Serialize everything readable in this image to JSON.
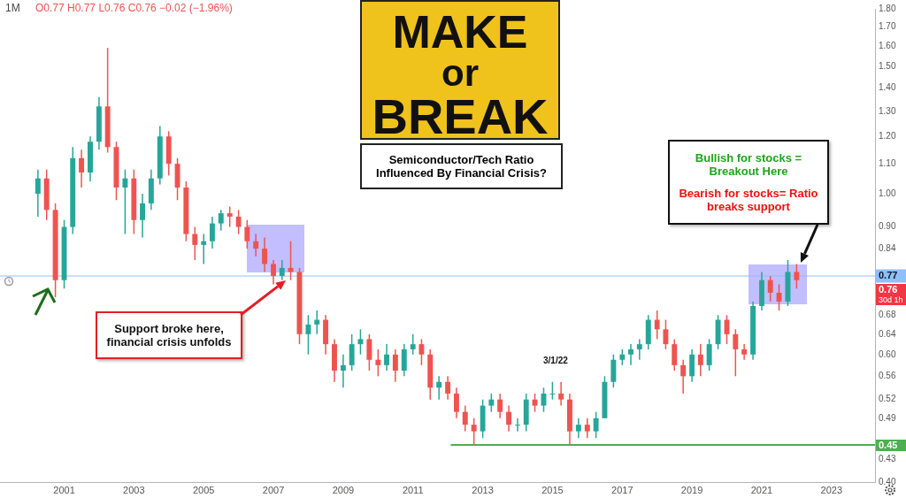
{
  "chart_data": {
    "type": "candlestick",
    "title": "MAKE or BREAK",
    "subtitle": "Semiconductor/Tech Ratio Influenced By Financial Crisis?",
    "x": [
      "2000-04",
      "2000-07",
      "2000-10",
      "2001-01",
      "2001-04",
      "2001-07",
      "2001-10",
      "2002-01",
      "2002-04",
      "2002-07",
      "2002-10",
      "2003-01",
      "2003-04",
      "2003-07",
      "2003-10",
      "2004-01",
      "2004-04",
      "2004-07",
      "2004-10",
      "2005-01",
      "2005-04",
      "2005-07",
      "2005-10",
      "2006-01",
      "2006-04",
      "2006-07",
      "2006-10",
      "2007-01",
      "2007-04",
      "2007-07",
      "2007-10",
      "2008-01",
      "2008-04",
      "2008-07",
      "2008-10",
      "2009-01",
      "2009-04",
      "2009-07",
      "2009-10",
      "2010-01",
      "2010-04",
      "2010-07",
      "2010-10",
      "2011-01",
      "2011-04",
      "2011-07",
      "2011-10",
      "2012-01",
      "2012-04",
      "2012-07",
      "2012-10",
      "2013-01",
      "2013-04",
      "2013-07",
      "2013-10",
      "2014-01",
      "2014-04",
      "2014-07",
      "2014-10",
      "2015-01",
      "2015-04",
      "2015-07",
      "2015-10",
      "2016-01",
      "2016-04",
      "2016-07",
      "2016-10",
      "2017-01",
      "2017-04",
      "2017-07",
      "2017-10",
      "2018-01",
      "2018-04",
      "2018-07",
      "2018-10",
      "2019-01",
      "2019-04",
      "2019-07",
      "2019-10",
      "2020-01",
      "2020-04",
      "2020-07",
      "2020-10",
      "2021-01",
      "2021-04",
      "2021-07",
      "2021-10",
      "2022-01"
    ],
    "ohlc": [
      [
        1.0,
        1.08,
        0.93,
        1.05
      ],
      [
        1.05,
        1.08,
        0.92,
        0.95
      ],
      [
        0.95,
        0.97,
        0.72,
        0.76
      ],
      [
        0.76,
        0.92,
        0.74,
        0.9
      ],
      [
        0.9,
        1.16,
        0.88,
        1.12
      ],
      [
        1.12,
        1.15,
        1.02,
        1.07
      ],
      [
        1.07,
        1.2,
        1.04,
        1.18
      ],
      [
        1.18,
        1.36,
        1.15,
        1.32
      ],
      [
        1.32,
        1.59,
        1.14,
        1.16
      ],
      [
        1.16,
        1.18,
        0.98,
        1.02
      ],
      [
        1.02,
        1.08,
        0.88,
        1.05
      ],
      [
        1.05,
        1.08,
        0.88,
        0.92
      ],
      [
        0.92,
        1.0,
        0.87,
        0.97
      ],
      [
        0.97,
        1.08,
        0.95,
        1.05
      ],
      [
        1.05,
        1.24,
        1.03,
        1.2
      ],
      [
        1.2,
        1.22,
        1.06,
        1.1
      ],
      [
        1.1,
        1.12,
        0.98,
        1.02
      ],
      [
        1.02,
        1.04,
        0.86,
        0.88
      ],
      [
        0.88,
        0.9,
        0.81,
        0.85
      ],
      [
        0.85,
        0.88,
        0.8,
        0.86
      ],
      [
        0.86,
        0.93,
        0.84,
        0.91
      ],
      [
        0.91,
        0.95,
        0.89,
        0.94
      ],
      [
        0.94,
        0.96,
        0.9,
        0.93
      ],
      [
        0.93,
        0.95,
        0.88,
        0.9
      ],
      [
        0.9,
        0.92,
        0.84,
        0.86
      ],
      [
        0.86,
        0.88,
        0.82,
        0.84
      ],
      [
        0.84,
        0.87,
        0.78,
        0.8
      ],
      [
        0.8,
        0.81,
        0.75,
        0.77
      ],
      [
        0.77,
        0.81,
        0.76,
        0.79
      ],
      [
        0.79,
        0.86,
        0.76,
        0.78
      ],
      [
        0.78,
        0.79,
        0.62,
        0.64
      ],
      [
        0.64,
        0.68,
        0.6,
        0.66
      ],
      [
        0.66,
        0.69,
        0.64,
        0.67
      ],
      [
        0.67,
        0.68,
        0.6,
        0.62
      ],
      [
        0.62,
        0.63,
        0.55,
        0.57
      ],
      [
        0.57,
        0.6,
        0.54,
        0.58
      ],
      [
        0.58,
        0.64,
        0.57,
        0.62
      ],
      [
        0.62,
        0.65,
        0.6,
        0.63
      ],
      [
        0.63,
        0.64,
        0.57,
        0.59
      ],
      [
        0.59,
        0.61,
        0.56,
        0.58
      ],
      [
        0.58,
        0.62,
        0.57,
        0.6
      ],
      [
        0.6,
        0.61,
        0.55,
        0.57
      ],
      [
        0.57,
        0.62,
        0.56,
        0.61
      ],
      [
        0.61,
        0.64,
        0.6,
        0.62
      ],
      [
        0.62,
        0.63,
        0.58,
        0.6
      ],
      [
        0.6,
        0.61,
        0.52,
        0.54
      ],
      [
        0.54,
        0.56,
        0.52,
        0.55
      ],
      [
        0.55,
        0.56,
        0.52,
        0.53
      ],
      [
        0.53,
        0.54,
        0.49,
        0.5
      ],
      [
        0.5,
        0.51,
        0.47,
        0.48
      ],
      [
        0.48,
        0.49,
        0.45,
        0.47
      ],
      [
        0.47,
        0.52,
        0.46,
        0.51
      ],
      [
        0.51,
        0.53,
        0.5,
        0.52
      ],
      [
        0.52,
        0.53,
        0.49,
        0.5
      ],
      [
        0.5,
        0.51,
        0.47,
        0.48
      ],
      [
        0.48,
        0.49,
        0.47,
        0.48
      ],
      [
        0.48,
        0.53,
        0.47,
        0.52
      ],
      [
        0.52,
        0.53,
        0.5,
        0.51
      ],
      [
        0.51,
        0.54,
        0.5,
        0.53
      ],
      [
        0.53,
        0.55,
        0.52,
        0.53
      ],
      [
        0.53,
        0.55,
        0.51,
        0.52
      ],
      [
        0.52,
        0.53,
        0.45,
        0.47
      ],
      [
        0.47,
        0.49,
        0.46,
        0.48
      ],
      [
        0.48,
        0.49,
        0.46,
        0.47
      ],
      [
        0.47,
        0.5,
        0.46,
        0.49
      ],
      [
        0.49,
        0.56,
        0.49,
        0.55
      ],
      [
        0.55,
        0.6,
        0.54,
        0.59
      ],
      [
        0.59,
        0.61,
        0.58,
        0.6
      ],
      [
        0.6,
        0.62,
        0.58,
        0.61
      ],
      [
        0.61,
        0.63,
        0.59,
        0.62
      ],
      [
        0.62,
        0.68,
        0.61,
        0.67
      ],
      [
        0.67,
        0.69,
        0.63,
        0.65
      ],
      [
        0.65,
        0.67,
        0.61,
        0.62
      ],
      [
        0.62,
        0.63,
        0.57,
        0.58
      ],
      [
        0.58,
        0.59,
        0.53,
        0.56
      ],
      [
        0.56,
        0.61,
        0.55,
        0.6
      ],
      [
        0.6,
        0.62,
        0.56,
        0.58
      ],
      [
        0.58,
        0.63,
        0.57,
        0.62
      ],
      [
        0.62,
        0.68,
        0.61,
        0.67
      ],
      [
        0.67,
        0.68,
        0.62,
        0.64
      ],
      [
        0.64,
        0.65,
        0.56,
        0.61
      ],
      [
        0.61,
        0.62,
        0.59,
        0.6
      ],
      [
        0.6,
        0.71,
        0.59,
        0.7
      ],
      [
        0.7,
        0.78,
        0.69,
        0.76
      ],
      [
        0.76,
        0.77,
        0.71,
        0.73
      ],
      [
        0.73,
        0.75,
        0.69,
        0.71
      ],
      [
        0.71,
        0.81,
        0.7,
        0.78
      ],
      [
        0.78,
        0.8,
        0.74,
        0.76
      ]
    ],
    "colors": [
      "#26a69a",
      "#ef5350",
      "#ef5350",
      "#26a69a",
      "#26a69a",
      "#ef5350",
      "#26a69a",
      "#26a69a",
      "#ef5350",
      "#ef5350",
      "#26a69a",
      "#ef5350",
      "#26a69a",
      "#26a69a",
      "#26a69a",
      "#ef5350",
      "#ef5350",
      "#ef5350",
      "#ef5350",
      "#26a69a",
      "#26a69a",
      "#26a69a",
      "#ef5350",
      "#ef5350",
      "#ef5350",
      "#ef5350",
      "#ef5350",
      "#ef5350",
      "#26a69a",
      "#ef5350",
      "#ef5350",
      "#26a69a",
      "#26a69a",
      "#ef5350",
      "#ef5350",
      "#26a69a",
      "#26a69a",
      "#26a69a",
      "#ef5350",
      "#ef5350",
      "#26a69a",
      "#ef5350",
      "#26a69a",
      "#26a69a",
      "#ef5350",
      "#ef5350",
      "#26a69a",
      "#ef5350",
      "#ef5350",
      "#ef5350",
      "#ef5350",
      "#26a69a",
      "#26a69a",
      "#ef5350",
      "#ef5350",
      "#26a69a",
      "#26a69a",
      "#ef5350",
      "#26a69a",
      "#26a69a",
      "#ef5350",
      "#ef5350",
      "#26a69a",
      "#ef5350",
      "#26a69a",
      "#26a69a",
      "#26a69a",
      "#26a69a",
      "#26a69a",
      "#26a69a",
      "#26a69a",
      "#ef5350",
      "#ef5350",
      "#ef5350",
      "#ef5350",
      "#26a69a",
      "#ef5350",
      "#26a69a",
      "#26a69a",
      "#ef5350",
      "#ef5350",
      "#ef5350",
      "#26a69a",
      "#26a69a",
      "#ef5350",
      "#ef5350",
      "#26a69a",
      "#ef5350"
    ],
    "series": [
      {
        "type": "line",
        "x": [
          "2012-02",
          "2024-04"
        ],
        "values": [
          0.45,
          0.45
        ],
        "color": "#4caf50"
      }
    ],
    "ref_lines": [
      {
        "axis": "y",
        "value": 0.77,
        "label": "0.77",
        "color": "#90bff9"
      }
    ],
    "xlim": [
      "1999-03",
      "2024-04"
    ],
    "xticks": [
      "2001",
      "2003",
      "2005",
      "2007",
      "2009",
      "2011",
      "2013",
      "2015",
      "2017",
      "2019",
      "2021",
      "2023"
    ],
    "ylim": [
      0.4,
      1.8
    ],
    "yticks": [
      {
        "value": 0.4,
        "label": "0.40"
      },
      0.43,
      0.49,
      0.52,
      0.56,
      {
        "value": 0.6,
        "label": "0.60"
      },
      0.64,
      0.68,
      0.84,
      {
        "value": 0.9,
        "label": "0.90"
      },
      {
        "value": 1,
        "label": "1.00"
      },
      {
        "value": 1.1,
        "label": "1.10"
      },
      {
        "value": 1.2,
        "label": "1.20"
      },
      {
        "value": 1.3,
        "label": "1.30"
      },
      {
        "value": 1.4,
        "label": "1.40"
      },
      {
        "value": 1.5,
        "label": "1.50"
      },
      {
        "value": 1.6,
        "label": "1.60"
      },
      {
        "value": 1.7,
        "label": "1.70"
      },
      {
        "value": 1.8,
        "label": "1.80"
      }
    ],
    "log": true,
    "grid": false,
    "legend": false,
    "marker": "none",
    "annotations": [
      "1M",
      "O0.77 H0.77 L0.76 C0.76 −0.02 (−1.96%)",
      "3/1/22",
      "0.45",
      "0.76",
      "30d 1h",
      "Support broke here, financial crisis unfolds",
      "Bullish for stocks = Breakout Here",
      "Bearish for stocks= Ratio breaks support"
    ]
  }
}
